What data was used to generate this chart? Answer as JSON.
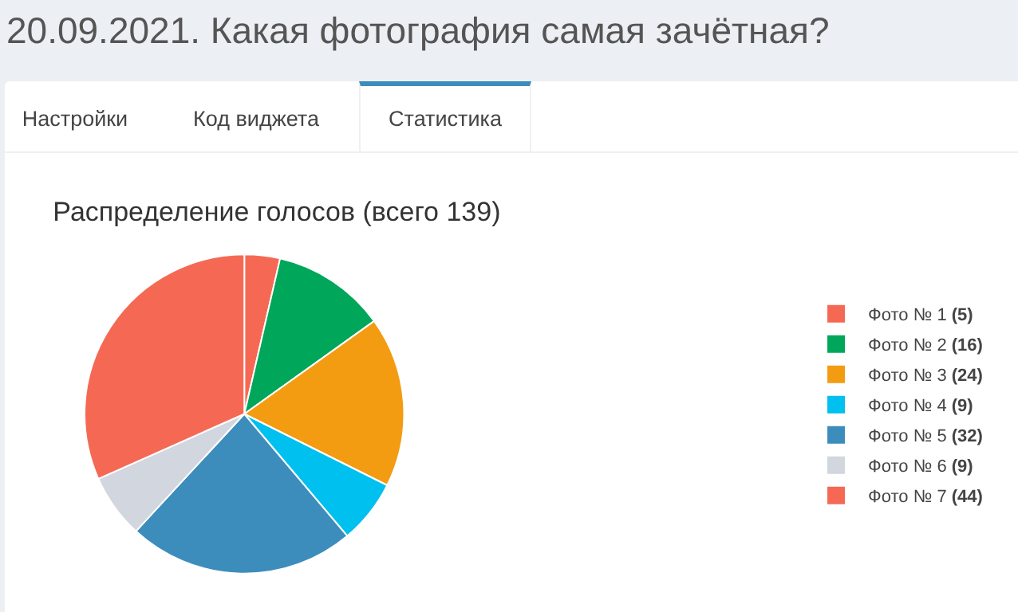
{
  "chart_data": {
    "type": "pie",
    "title": "Распределение голосов (всего 139)",
    "annotations": [
      "20.09.2021. Какая фотография самая зачётная?",
      "Настройки",
      "Код виджета",
      "Статистика"
    ],
    "categories": [
      "Фото № 1",
      "Фото № 2",
      "Фото № 3",
      "Фото № 4",
      "Фото № 5",
      "Фото № 6",
      "Фото № 7"
    ],
    "values": [
      5,
      16,
      24,
      9,
      32,
      9,
      44
    ],
    "value_labels": [
      "(5)",
      "(16)",
      "(24)",
      "(9)",
      "(32)",
      "(9)",
      "(44)"
    ],
    "colors": [
      "#f56954",
      "#00a65a",
      "#f39c12",
      "#00c0ef",
      "#3c8dbc",
      "#d2d6de",
      "#f56954"
    ],
    "legend": "right"
  }
}
